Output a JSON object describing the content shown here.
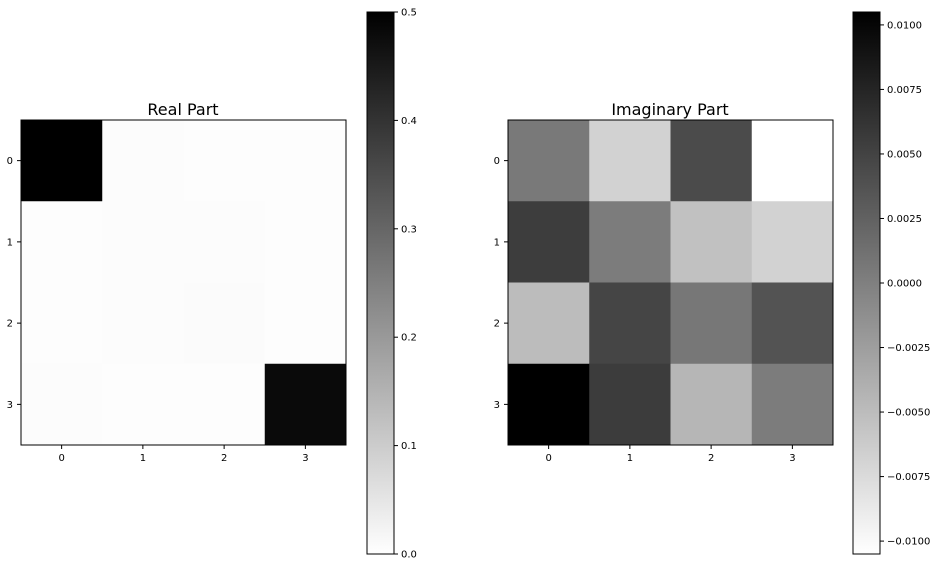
{
  "chart_data": [
    {
      "type": "heatmap",
      "title": "Real Part",
      "rows": [
        0,
        1,
        2,
        3
      ],
      "cols": [
        0,
        1,
        2,
        3
      ],
      "values": [
        [
          0.5,
          0.005,
          0.004,
          0.004
        ],
        [
          0.004,
          0.006,
          0.005,
          0.003
        ],
        [
          0.004,
          0.005,
          0.007,
          0.003
        ],
        [
          0.005,
          0.004,
          0.003,
          0.48
        ]
      ],
      "colormap": "gray_r",
      "vmin": 0.0,
      "vmax": 0.5,
      "colorbar_ticks": [
        "0.0",
        "0.1",
        "0.2",
        "0.3",
        "0.4",
        "0.5"
      ],
      "colorbar_tick_values": [
        0.0,
        0.1,
        0.2,
        0.3,
        0.4,
        0.5
      ]
    },
    {
      "type": "heatmap",
      "title": "Imaginary Part",
      "rows": [
        0,
        1,
        2,
        3
      ],
      "cols": [
        0,
        1,
        2,
        3
      ],
      "values": [
        [
          0.0005,
          -0.0068,
          0.0043,
          -0.0105
        ],
        [
          0.0055,
          0.0003,
          -0.0054,
          -0.0068
        ],
        [
          -0.005,
          0.0048,
          0.0007,
          0.0037
        ],
        [
          0.0105,
          0.0056,
          -0.0045,
          0.0003
        ]
      ],
      "colormap": "gray_r",
      "vmin": -0.0105,
      "vmax": 0.0105,
      "colorbar_ticks": [
        "−0.0100",
        "−0.0075",
        "−0.0050",
        "−0.0025",
        "0.0000",
        "0.0025",
        "0.0050",
        "0.0075",
        "0.0100"
      ],
      "colorbar_tick_values": [
        -0.01,
        -0.0075,
        -0.005,
        -0.0025,
        0.0,
        0.0025,
        0.005,
        0.0075,
        0.01
      ]
    }
  ]
}
